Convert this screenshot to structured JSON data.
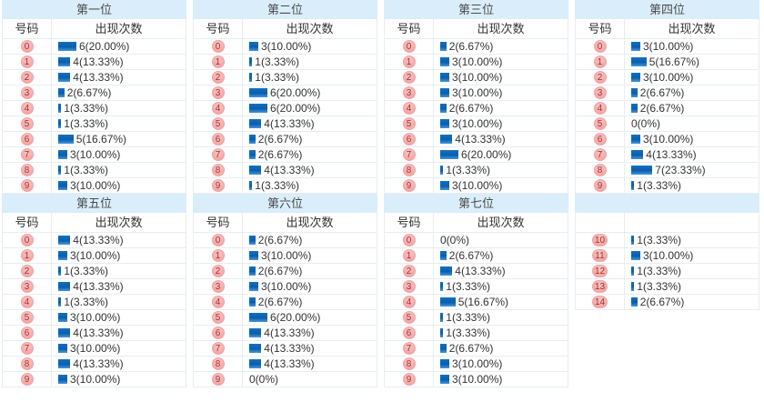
{
  "colors": {
    "band_blue": "#d9eefa",
    "bar_blue_top": "#1272bf",
    "bar_blue_mid": "#0a5dab",
    "bar_blue_bottom": "#4596dc",
    "badge_pink": "#f49b9b",
    "badge_text": "#99332f",
    "value_text": "#333333",
    "border": "#e8edf1"
  },
  "column_headers": {
    "number": "号码",
    "count": "出现次数"
  },
  "chart_data": [
    {
      "type": "bar",
      "title": "第一位",
      "show_header": true,
      "categories": [
        "0",
        "1",
        "2",
        "3",
        "4",
        "5",
        "6",
        "7",
        "8",
        "9"
      ],
      "values": [
        6,
        4,
        4,
        2,
        1,
        1,
        5,
        3,
        1,
        3
      ],
      "labels": [
        "6(20.00%)",
        "4(13.33%)",
        "4(13.33%)",
        "2(6.67%)",
        "1(3.33%)",
        "1(3.33%)",
        "5(16.67%)",
        "3(10.00%)",
        "1(3.33%)",
        "3(10.00%)"
      ]
    },
    {
      "type": "bar",
      "title": "第二位",
      "show_header": true,
      "categories": [
        "0",
        "1",
        "2",
        "3",
        "4",
        "5",
        "6",
        "7",
        "8",
        "9"
      ],
      "values": [
        3,
        1,
        1,
        6,
        6,
        4,
        2,
        2,
        4,
        1
      ],
      "labels": [
        "3(10.00%)",
        "1(3.33%)",
        "1(3.33%)",
        "6(20.00%)",
        "6(20.00%)",
        "4(13.33%)",
        "2(6.67%)",
        "2(6.67%)",
        "4(13.33%)",
        "1(3.33%)"
      ]
    },
    {
      "type": "bar",
      "title": "第三位",
      "show_header": true,
      "categories": [
        "0",
        "1",
        "2",
        "3",
        "4",
        "5",
        "6",
        "7",
        "8",
        "9"
      ],
      "values": [
        2,
        3,
        3,
        3,
        2,
        3,
        4,
        6,
        1,
        3
      ],
      "labels": [
        "2(6.67%)",
        "3(10.00%)",
        "3(10.00%)",
        "3(10.00%)",
        "2(6.67%)",
        "3(10.00%)",
        "4(13.33%)",
        "6(20.00%)",
        "1(3.33%)",
        "3(10.00%)"
      ]
    },
    {
      "type": "bar",
      "title": "第四位",
      "show_header": true,
      "categories": [
        "0",
        "1",
        "2",
        "3",
        "4",
        "5",
        "6",
        "7",
        "8",
        "9"
      ],
      "values": [
        3,
        5,
        3,
        2,
        2,
        0,
        3,
        4,
        7,
        1
      ],
      "labels": [
        "3(10.00%)",
        "5(16.67%)",
        "3(10.00%)",
        "2(6.67%)",
        "2(6.67%)",
        "0(0%)",
        "3(10.00%)",
        "4(13.33%)",
        "7(23.33%)",
        "1(3.33%)"
      ]
    },
    {
      "type": "bar",
      "title": "第五位",
      "show_header": true,
      "categories": [
        "0",
        "1",
        "2",
        "3",
        "4",
        "5",
        "6",
        "7",
        "8",
        "9"
      ],
      "values": [
        4,
        3,
        1,
        4,
        1,
        3,
        4,
        3,
        4,
        3
      ],
      "labels": [
        "4(13.33%)",
        "3(10.00%)",
        "1(3.33%)",
        "4(13.33%)",
        "1(3.33%)",
        "3(10.00%)",
        "4(13.33%)",
        "3(10.00%)",
        "4(13.33%)",
        "3(10.00%)"
      ]
    },
    {
      "type": "bar",
      "title": "第六位",
      "show_header": true,
      "categories": [
        "0",
        "1",
        "2",
        "3",
        "4",
        "5",
        "6",
        "7",
        "8",
        "9"
      ],
      "values": [
        2,
        3,
        2,
        3,
        2,
        6,
        4,
        4,
        4,
        0
      ],
      "labels": [
        "2(6.67%)",
        "3(10.00%)",
        "2(6.67%)",
        "3(10.00%)",
        "2(6.67%)",
        "6(20.00%)",
        "4(13.33%)",
        "4(13.33%)",
        "4(13.33%)",
        "0(0%)"
      ]
    },
    {
      "type": "bar",
      "title": "第七位",
      "show_header": true,
      "categories": [
        "0",
        "1",
        "2",
        "3",
        "4",
        "5",
        "6",
        "7",
        "8",
        "9"
      ],
      "values": [
        0,
        2,
        4,
        1,
        5,
        1,
        1,
        2,
        3,
        3
      ],
      "labels": [
        "0(0%)",
        "2(6.67%)",
        "4(13.33%)",
        "1(3.33%)",
        "5(16.67%)",
        "1(3.33%)",
        "1(3.33%)",
        "2(6.67%)",
        "3(10.00%)",
        "3(10.00%)"
      ]
    },
    {
      "type": "bar",
      "title": "",
      "show_header": false,
      "categories": [
        "10",
        "11",
        "12",
        "13",
        "14"
      ],
      "values": [
        1,
        3,
        1,
        1,
        2
      ],
      "labels": [
        "1(3.33%)",
        "3(10.00%)",
        "1(3.33%)",
        "1(3.33%)",
        "2(6.67%)"
      ]
    }
  ]
}
